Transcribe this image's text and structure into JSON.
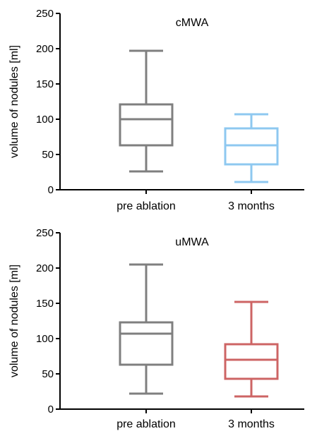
{
  "chart_data": [
    {
      "type": "box",
      "title": "cMWA",
      "ylabel": "volume of nodules [ml]",
      "xlabel": "",
      "ylim": [
        0,
        250
      ],
      "yticks": [
        0,
        50,
        100,
        150,
        200,
        250
      ],
      "categories": [
        "pre ablation",
        "3 months"
      ],
      "boxes": [
        {
          "category": "pre ablation",
          "min": 26,
          "q1": 63,
          "median": 100,
          "q3": 121,
          "max": 197,
          "color": "#7f7f7f"
        },
        {
          "category": "3 months",
          "min": 11,
          "q1": 36,
          "median": 63,
          "q3": 87,
          "max": 107,
          "color": "#8ec8f0"
        }
      ]
    },
    {
      "type": "box",
      "title": "uMWA",
      "ylabel": "volume of nodules [ml]",
      "xlabel": "",
      "ylim": [
        0,
        250
      ],
      "yticks": [
        0,
        50,
        100,
        150,
        200,
        250
      ],
      "categories": [
        "pre ablation",
        "3 months"
      ],
      "boxes": [
        {
          "category": "pre ablation",
          "min": 22,
          "q1": 63,
          "median": 107,
          "q3": 123,
          "max": 205,
          "color": "#7f7f7f"
        },
        {
          "category": "3 months",
          "min": 18,
          "q1": 43,
          "median": 70,
          "q3": 92,
          "max": 152,
          "color": "#cd6464"
        }
      ]
    }
  ]
}
